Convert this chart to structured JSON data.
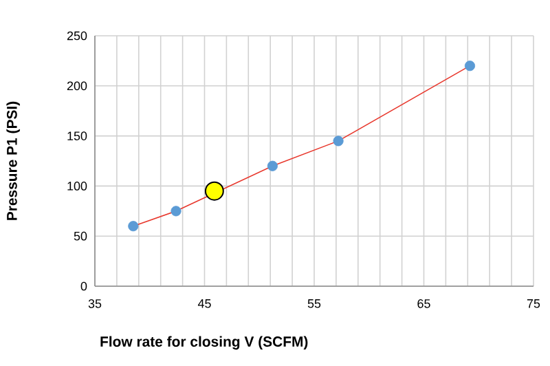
{
  "chart_data": {
    "type": "line",
    "xlabel": "Flow rate for closing V (SCFM)",
    "ylabel": "Pressure P1 (PSI)",
    "xlim": [
      35,
      75
    ],
    "ylim": [
      0,
      250
    ],
    "xticks": [
      35,
      {
        "value": 37,
        "label": null
      },
      {
        "value": 39,
        "label": null
      },
      {
        "value": 41,
        "label": null
      },
      {
        "value": 43,
        "label": null
      },
      45,
      {
        "value": 47,
        "label": null
      },
      {
        "value": 49,
        "label": null
      },
      {
        "value": 51,
        "label": null
      },
      {
        "value": 53,
        "label": null
      },
      55,
      {
        "value": 57,
        "label": null
      },
      {
        "value": 59,
        "label": null
      },
      {
        "value": 61,
        "label": null
      },
      {
        "value": 63,
        "label": null
      },
      65,
      {
        "value": 67,
        "label": null
      },
      {
        "value": 69,
        "label": null
      },
      {
        "value": 71,
        "label": null
      },
      {
        "value": 73,
        "label": null
      },
      75
    ],
    "yticks": [
      0,
      50,
      100,
      150,
      200,
      250
    ],
    "grid": true,
    "series": [
      {
        "color": "#e8372c",
        "marker": "none",
        "x": [
          38.5,
          42.4,
          51.2,
          57.2,
          69.2
        ],
        "values": [
          60,
          75,
          120,
          145,
          220
        ]
      },
      {
        "type": "scatter",
        "color": "#5b9bd5",
        "marker": "circle",
        "x": [
          38.5,
          42.4,
          51.2,
          57.2,
          69.2
        ],
        "values": [
          60,
          75,
          120,
          145,
          220
        ]
      },
      {
        "type": "scatter",
        "color": "#ffff00",
        "marker": "circle",
        "x": [
          45.9
        ],
        "values": [
          95
        ]
      }
    ]
  }
}
